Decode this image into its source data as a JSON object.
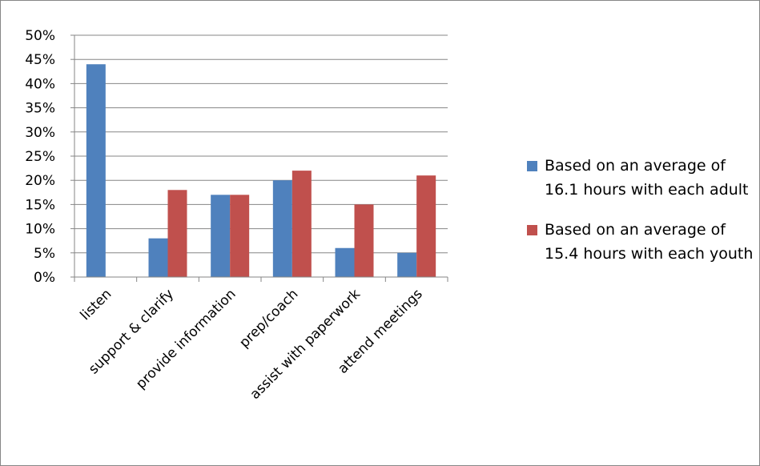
{
  "chart_data": {
    "type": "bar",
    "title": "",
    "xlabel": "",
    "ylabel": "",
    "categories": [
      "listen",
      "support & clarify",
      "provide information",
      "prep/coach",
      "assist with paperwork",
      "attend meetings"
    ],
    "series": [
      {
        "name": "Based on an average of 16.1 hours with each adult",
        "color": "#4F81BD",
        "values": [
          44,
          8,
          17,
          20,
          6,
          5
        ]
      },
      {
        "name": "Based on an average of 15.4 hours  with each youth",
        "color": "#C0504D",
        "values": [
          0,
          18,
          17,
          22,
          15,
          21
        ]
      }
    ],
    "ylim": [
      0,
      50
    ],
    "yticks": [
      0,
      5,
      10,
      15,
      20,
      25,
      30,
      35,
      40,
      45,
      50
    ],
    "ytick_labels": [
      "0%",
      "5%",
      "10%",
      "15%",
      "20%",
      "25%",
      "30%",
      "35%",
      "40%",
      "45%",
      "50%"
    ],
    "grid": true,
    "legend_position": "right"
  }
}
